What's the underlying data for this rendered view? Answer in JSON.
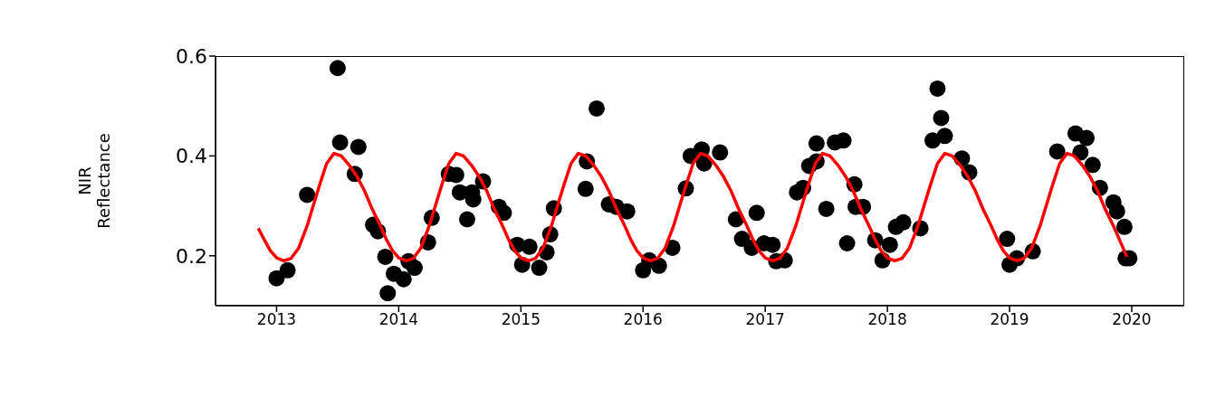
{
  "chart_data": {
    "type": "scatter",
    "ylabel": "NIR\nReflectance",
    "xlim": [
      2012.5,
      2020.43
    ],
    "xticks": [
      2013,
      2014,
      2015,
      2016,
      2017,
      2018,
      2019,
      2020
    ],
    "ylim": [
      0.1,
      0.6
    ],
    "yticks": [
      0.2,
      0.4,
      0.6
    ],
    "grid": false,
    "legend": false,
    "marker": "circle",
    "series": [
      {
        "type": "scatter",
        "color": "#000000",
        "x": [
          2013.0,
          2013.09,
          2013.25,
          2013.5,
          2013.52,
          2013.67,
          2013.64,
          2013.79,
          2013.83,
          2013.89,
          2013.96,
          2013.91,
          2014.04,
          2014.13,
          2014.08,
          2014.24,
          2014.27,
          2014.41,
          2014.47,
          2014.5,
          2014.56,
          2014.6,
          2014.61,
          2014.69,
          2014.82,
          2014.86,
          2014.97,
          2015.01,
          2015.07,
          2015.15,
          2015.21,
          2015.24,
          2015.27,
          2015.54,
          2015.53,
          2015.62,
          2015.72,
          2015.78,
          2015.87,
          2016.0,
          2016.05,
          2016.13,
          2016.24,
          2016.35,
          2016.39,
          2016.48,
          2016.5,
          2016.63,
          2016.76,
          2016.81,
          2016.93,
          2016.89,
          2016.99,
          2017.06,
          2017.09,
          2017.16,
          2017.26,
          2017.31,
          2017.36,
          2017.42,
          2017.42,
          2017.5,
          2017.57,
          2017.64,
          2017.67,
          2017.73,
          2017.74,
          2017.8,
          2017.9,
          2017.96,
          2018.02,
          2018.07,
          2018.13,
          2018.27,
          2018.37,
          2018.44,
          2018.47,
          2018.41,
          2018.61,
          2018.67,
          2018.98,
          2019.0,
          2019.06,
          2019.19,
          2019.39,
          2019.54,
          2019.63,
          2019.58,
          2019.68,
          2019.74,
          2019.85,
          2019.88,
          2019.94,
          2019.95,
          2019.98
        ],
        "values": [
          0.155,
          0.171,
          0.322,
          0.576,
          0.427,
          0.418,
          0.364,
          0.262,
          0.249,
          0.198,
          0.164,
          0.125,
          0.153,
          0.176,
          0.189,
          0.227,
          0.276,
          0.364,
          0.362,
          0.327,
          0.273,
          0.327,
          0.313,
          0.349,
          0.298,
          0.286,
          0.222,
          0.182,
          0.218,
          0.176,
          0.207,
          0.243,
          0.295,
          0.389,
          0.334,
          0.495,
          0.303,
          0.298,
          0.289,
          0.171,
          0.191,
          0.18,
          0.216,
          0.335,
          0.4,
          0.413,
          0.385,
          0.407,
          0.273,
          0.234,
          0.286,
          0.216,
          0.225,
          0.222,
          0.189,
          0.191,
          0.327,
          0.336,
          0.38,
          0.389,
          0.425,
          0.294,
          0.427,
          0.431,
          0.225,
          0.343,
          0.298,
          0.298,
          0.231,
          0.191,
          0.222,
          0.258,
          0.267,
          0.255,
          0.431,
          0.476,
          0.44,
          0.535,
          0.395,
          0.367,
          0.234,
          0.182,
          0.195,
          0.209,
          0.409,
          0.445,
          0.436,
          0.407,
          0.382,
          0.336,
          0.307,
          0.289,
          0.258,
          0.195,
          0.195
        ]
      },
      {
        "type": "line",
        "color": "#ff0000",
        "line_style": "solid",
        "marker": "none",
        "x": [
          2012.85,
          2012.9,
          2012.95,
          2013.0,
          2013.06,
          2013.12,
          2013.18,
          2013.25,
          2013.3,
          2013.35,
          2013.41,
          2013.47,
          2013.53,
          2013.6,
          2013.66,
          2013.72,
          2013.78,
          2013.85,
          2013.9,
          2013.95,
          2014.0,
          2014.06,
          2014.12,
          2014.18,
          2014.25,
          2014.3,
          2014.35,
          2014.41,
          2014.47,
          2014.53,
          2014.6,
          2014.66,
          2014.72,
          2014.78,
          2014.85,
          2014.9,
          2014.95,
          2015.0,
          2015.06,
          2015.12,
          2015.18,
          2015.25,
          2015.3,
          2015.35,
          2015.41,
          2015.47,
          2015.53,
          2015.6,
          2015.66,
          2015.72,
          2015.78,
          2015.85,
          2015.9,
          2015.95,
          2016.0,
          2016.06,
          2016.12,
          2016.18,
          2016.25,
          2016.3,
          2016.35,
          2016.41,
          2016.47,
          2016.53,
          2016.6,
          2016.66,
          2016.72,
          2016.78,
          2016.85,
          2016.9,
          2016.95,
          2017.0,
          2017.06,
          2017.12,
          2017.18,
          2017.25,
          2017.3,
          2017.35,
          2017.41,
          2017.47,
          2017.53,
          2017.6,
          2017.66,
          2017.72,
          2017.78,
          2017.85,
          2017.9,
          2017.95,
          2018.0,
          2018.06,
          2018.12,
          2018.18,
          2018.25,
          2018.3,
          2018.35,
          2018.41,
          2018.47,
          2018.53,
          2018.6,
          2018.66,
          2018.72,
          2018.78,
          2018.85,
          2018.9,
          2018.95,
          2019.0,
          2019.06,
          2019.12,
          2019.18,
          2019.25,
          2019.3,
          2019.35,
          2019.41,
          2019.47,
          2019.53,
          2019.6,
          2019.66,
          2019.72,
          2019.78,
          2019.85,
          2019.9,
          2019.96
        ],
        "values": [
          0.255,
          0.232,
          0.21,
          0.196,
          0.19,
          0.195,
          0.215,
          0.26,
          0.3,
          0.34,
          0.385,
          0.405,
          0.4,
          0.38,
          0.358,
          0.33,
          0.295,
          0.26,
          0.232,
          0.21,
          0.196,
          0.19,
          0.195,
          0.215,
          0.26,
          0.3,
          0.34,
          0.385,
          0.405,
          0.4,
          0.38,
          0.358,
          0.33,
          0.295,
          0.26,
          0.232,
          0.21,
          0.196,
          0.19,
          0.195,
          0.215,
          0.26,
          0.3,
          0.34,
          0.385,
          0.405,
          0.4,
          0.38,
          0.358,
          0.33,
          0.295,
          0.26,
          0.232,
          0.21,
          0.196,
          0.19,
          0.195,
          0.215,
          0.26,
          0.3,
          0.34,
          0.385,
          0.405,
          0.4,
          0.38,
          0.358,
          0.33,
          0.295,
          0.26,
          0.232,
          0.21,
          0.196,
          0.19,
          0.195,
          0.215,
          0.26,
          0.3,
          0.34,
          0.385,
          0.405,
          0.4,
          0.38,
          0.358,
          0.33,
          0.295,
          0.26,
          0.232,
          0.21,
          0.196,
          0.19,
          0.195,
          0.215,
          0.26,
          0.3,
          0.34,
          0.385,
          0.405,
          0.4,
          0.38,
          0.358,
          0.33,
          0.295,
          0.26,
          0.232,
          0.21,
          0.196,
          0.19,
          0.195,
          0.215,
          0.26,
          0.3,
          0.34,
          0.385,
          0.405,
          0.4,
          0.38,
          0.358,
          0.33,
          0.295,
          0.26,
          0.232,
          0.198
        ]
      }
    ]
  }
}
